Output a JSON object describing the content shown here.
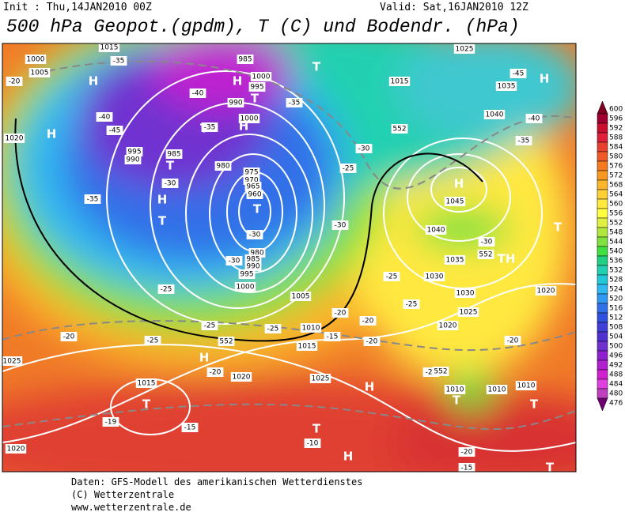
{
  "header": {
    "init": "Init : Thu,14JAN2010 00Z",
    "valid": "Valid: Sat,16JAN2010 12Z",
    "title": "500 hPa Geopot.(gpdm), T (C) und Bodendr. (hPa)"
  },
  "footer": [
    "Daten: GFS-Modell des amerikanischen Wetterdienstes",
    "(C) Wetterzentrale",
    "www.wetterzentrale.de"
  ],
  "colorbar": {
    "labels": [
      600,
      596,
      592,
      588,
      584,
      580,
      576,
      572,
      568,
      564,
      560,
      556,
      552,
      548,
      544,
      540,
      536,
      532,
      528,
      524,
      520,
      516,
      512,
      508,
      504,
      500,
      496,
      492,
      488,
      484,
      480,
      476
    ]
  },
  "map": {
    "center_labels": [
      "H",
      "H",
      "H",
      "H",
      "T",
      "T",
      "T",
      "T",
      "H",
      "T",
      "T",
      "H",
      "H",
      "T",
      "TH",
      "H",
      "T",
      "H",
      "T",
      "H",
      "T",
      "T",
      "T"
    ],
    "pressure_labels": [
      "1000",
      "1005",
      "1015",
      "985",
      "1000",
      "995",
      "990",
      "1000",
      "995",
      "990",
      "985",
      "980",
      "975",
      "970",
      "965",
      "960",
      "980",
      "985",
      "990",
      "995",
      "1000",
      "1005",
      "1010",
      "1015",
      "1020",
      "1025",
      "1015",
      "1020",
      "1025",
      "1020",
      "1025",
      "1030",
      "1035",
      "1030",
      "1040",
      "1045",
      "1040",
      "1035",
      "1025",
      "1015",
      "1010",
      "1010",
      "1010",
      "1020",
      "1020"
    ],
    "temperature_labels": [
      "-20",
      "-35",
      "-45",
      "-40",
      "-35",
      "-30",
      "-35",
      "-40",
      "-35",
      "-30",
      "-25",
      "-30",
      "-30",
      "-30",
      "-25",
      "-25",
      "-25",
      "-25",
      "-20",
      "-20",
      "-15",
      "-20",
      "-20",
      "-20",
      "-25",
      "-25",
      "-19",
      "-15",
      "-10",
      "-20",
      "-15",
      "-20",
      "-30",
      "-35",
      "-40",
      "-45",
      "-25"
    ],
    "height_labels": [
      "552",
      "552",
      "552",
      "552"
    ]
  }
}
